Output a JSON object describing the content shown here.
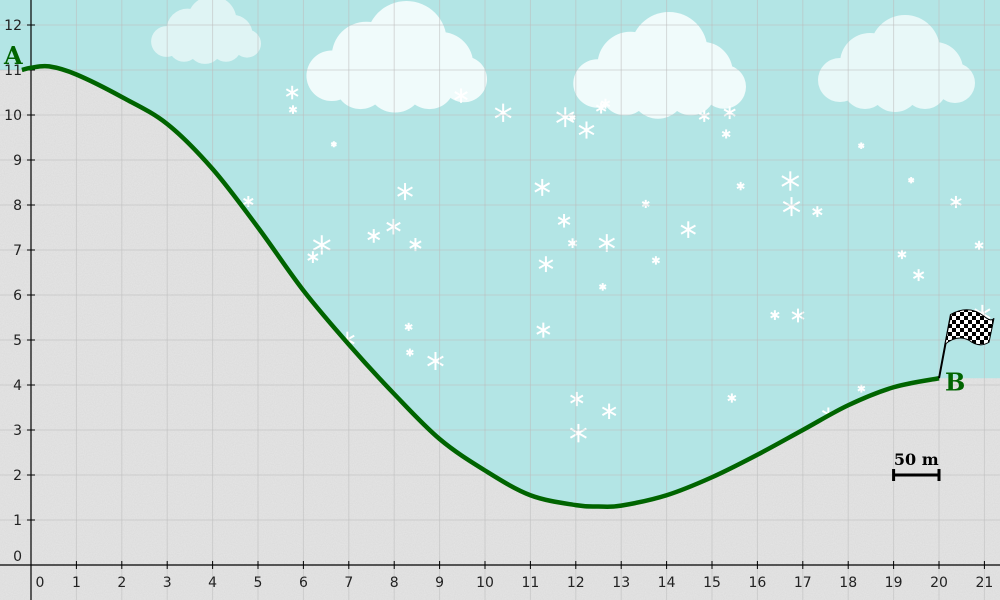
{
  "colors": {
    "sky": "#b3e5e5",
    "snow": "#e6e6e6",
    "curve": "#006400",
    "label": "#006400",
    "grid": "#bdbdbd"
  },
  "axes": {
    "x_ticks": [
      0,
      1,
      2,
      3,
      4,
      5,
      6,
      7,
      8,
      9,
      10,
      11,
      12,
      13,
      14,
      15,
      16,
      17,
      18,
      19,
      20,
      21
    ],
    "y_ticks": [
      0,
      1,
      2,
      3,
      4,
      5,
      6,
      7,
      8,
      9,
      10,
      11,
      12
    ],
    "xlim": [
      -0.2,
      21.3
    ],
    "ylim": [
      -0.2,
      12.5
    ]
  },
  "points": {
    "A": {
      "label": "A",
      "x": 0,
      "y": 11
    },
    "B": {
      "label": "B",
      "x": 20,
      "y": 4.15
    }
  },
  "curve": {
    "x": [
      -0.2,
      0,
      0.4,
      1,
      2,
      3,
      4,
      5,
      6,
      7,
      8,
      9,
      10,
      11,
      12,
      12.5,
      13,
      14,
      15,
      16,
      17,
      18,
      19,
      20
    ],
    "y": [
      11,
      11.05,
      11.08,
      10.9,
      10.4,
      9.8,
      8.8,
      7.5,
      6.1,
      4.9,
      3.8,
      2.8,
      2.1,
      1.55,
      1.33,
      1.3,
      1.32,
      1.55,
      1.95,
      2.45,
      3.0,
      3.55,
      3.95,
      4.15
    ]
  },
  "scale_bar": {
    "label": "50 m",
    "from_x": 19,
    "to_x": 20,
    "y": 2
  },
  "icons": {
    "flag": "checkered-flag-icon",
    "snowflake": "snowflake-icon",
    "cloud": "cloud-icon"
  }
}
